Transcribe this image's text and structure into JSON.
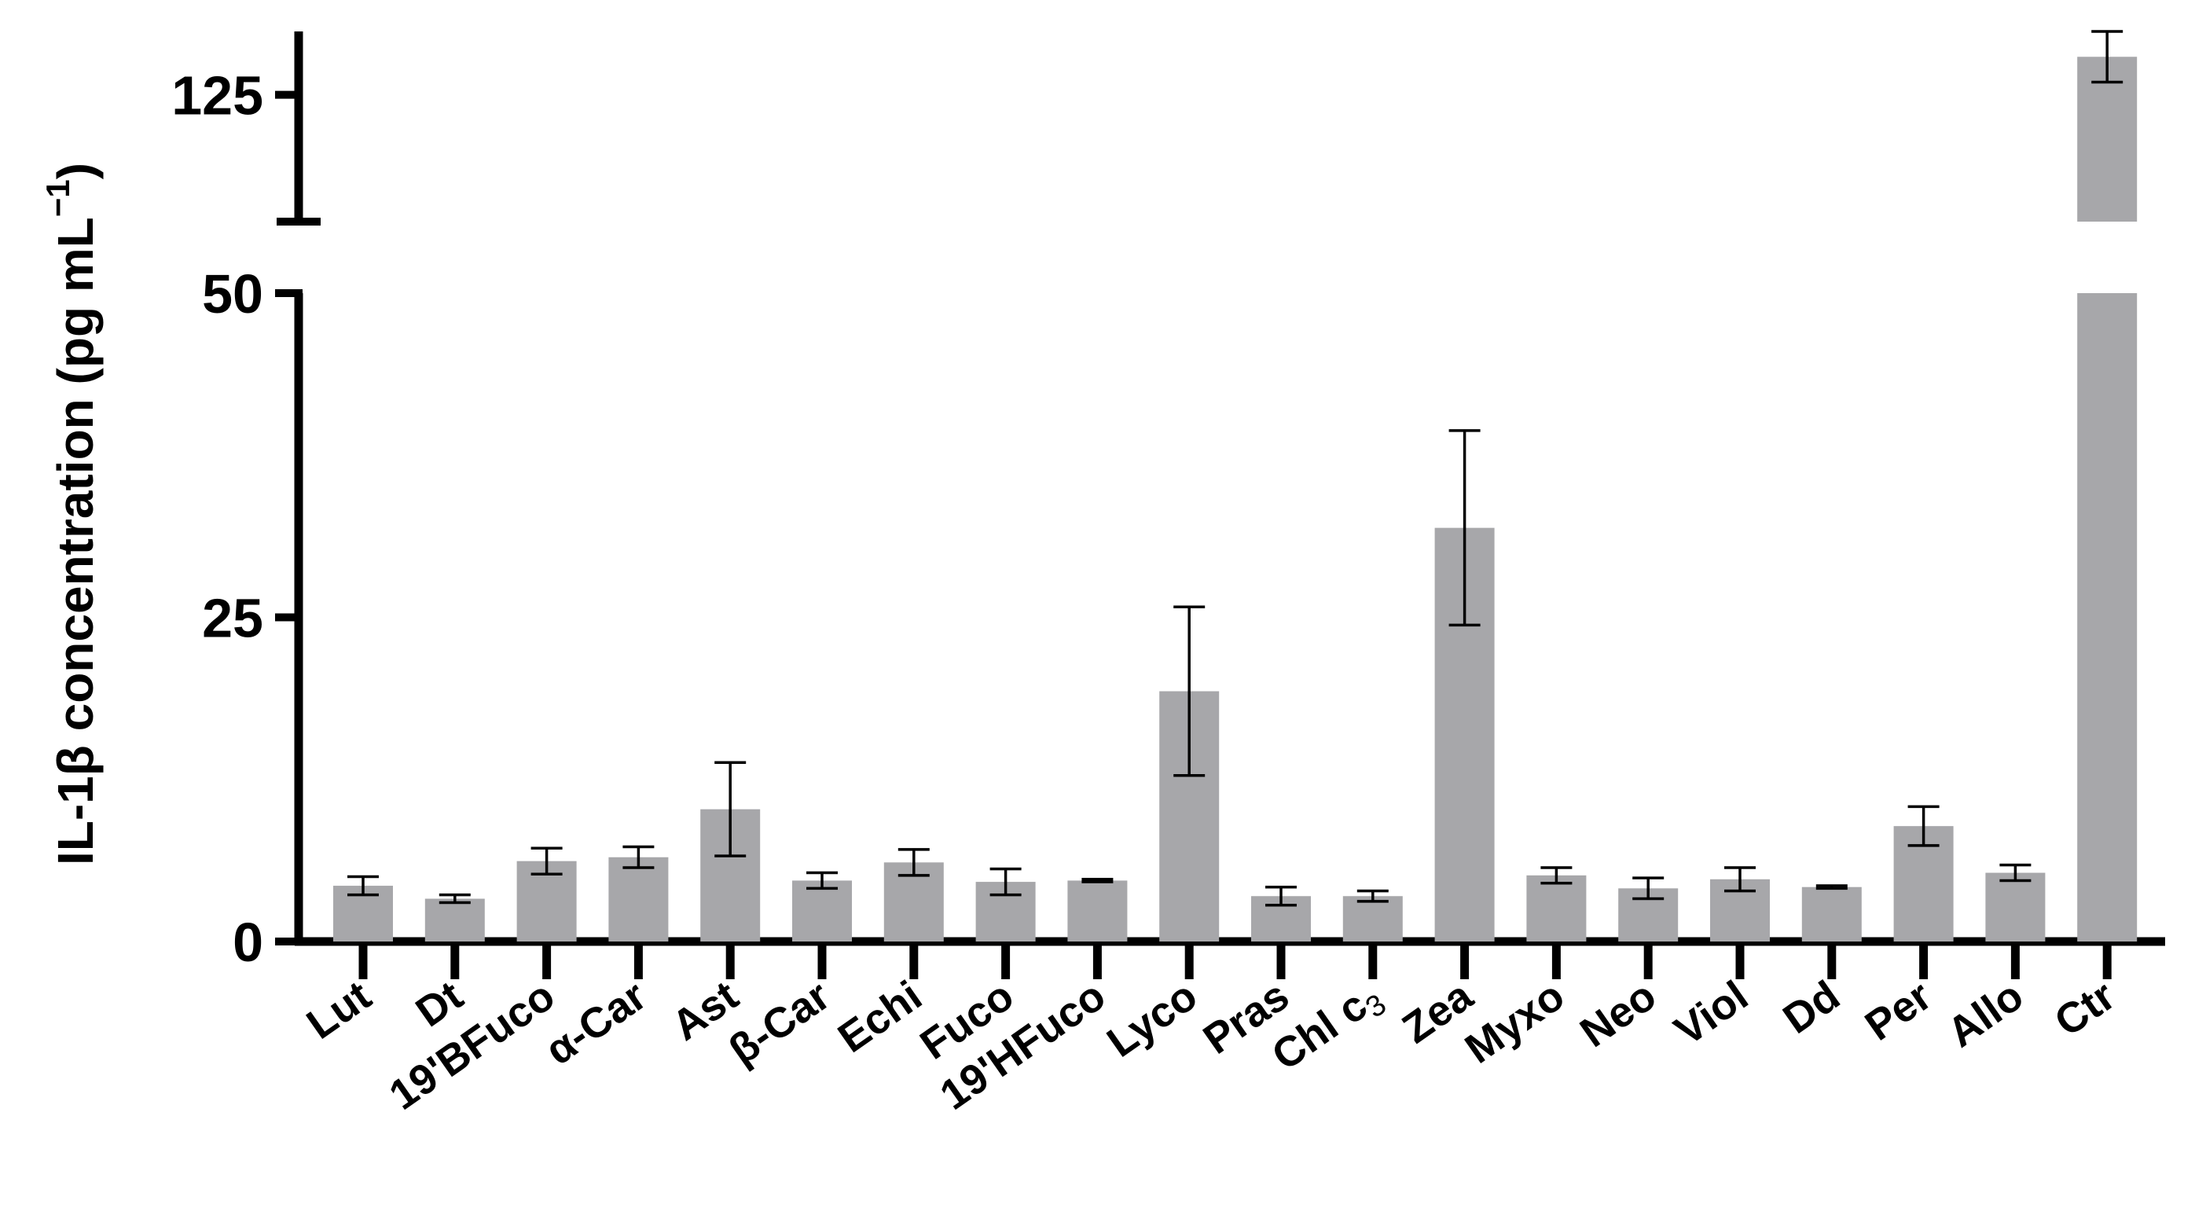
{
  "chart_data": {
    "type": "bar",
    "ylabel": "IL-1β concentration (pg mL⁻¹)",
    "ylabel_main": "IL-1β concentration (pg mL",
    "ylabel_sup": "−1",
    "ylabel_close": ")",
    "y_axis_break": true,
    "ylim_lower": [
      0,
      50
    ],
    "ylim_upper": [
      115,
      130
    ],
    "yticks_lower": [
      "0",
      "25",
      "50"
    ],
    "yticks_upper": [
      "125"
    ],
    "categories": [
      "Lut",
      "Dt",
      "19'BFuco",
      "α-Car",
      "Ast",
      "β-Car",
      "Echi",
      "Fuco",
      "19'HFuco",
      "Lyco",
      "Pras",
      "Chl c3",
      "Zea",
      "Myxo",
      "Neo",
      "Viol",
      "Dd",
      "Per",
      "Allo",
      "Ctr"
    ],
    "values": [
      4.3,
      3.3,
      6.2,
      6.5,
      10.2,
      4.7,
      6.1,
      4.6,
      4.7,
      19.3,
      3.5,
      3.5,
      31.9,
      5.1,
      4.1,
      4.8,
      4.2,
      8.9,
      5.3,
      128
    ],
    "errors": [
      0.7,
      0.3,
      1.0,
      0.8,
      3.6,
      0.6,
      1.0,
      1.0,
      0.1,
      6.5,
      0.7,
      0.4,
      7.5,
      0.6,
      0.8,
      0.9,
      0.1,
      1.5,
      0.6,
      2.0
    ],
    "bar_color": "#a7a7aa",
    "axis_color": "#000000",
    "grid": false,
    "legend": false
  }
}
